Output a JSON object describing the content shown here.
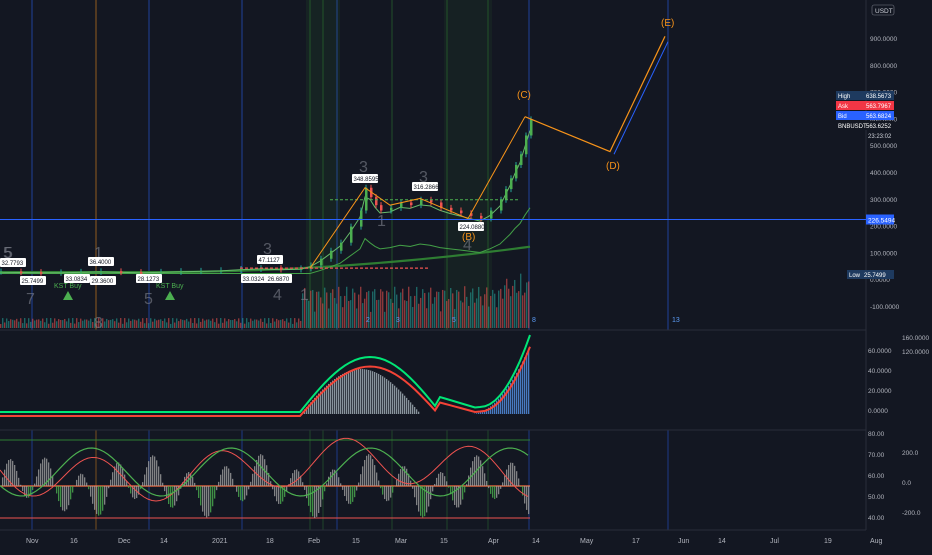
{
  "currency": "USDT",
  "symbol": "BNBUSDT",
  "colors": {
    "background": "#131722",
    "bull": "#26a69a",
    "bear": "#ef5350",
    "wave": "#f7931a",
    "wave_blue": "#2962ff",
    "price_line": "#2962ff"
  },
  "time_axis": [
    "Nov",
    "16",
    "Dec",
    "14",
    "2021",
    "18",
    "Feb",
    "15",
    "Mar",
    "15",
    "Apr",
    "14",
    "May",
    "17",
    "Jun",
    "14",
    "Jul",
    "19",
    "Aug"
  ],
  "price_axis": [
    "900.0000",
    "800.0000",
    "700.0000",
    "600.0000",
    "500.0000",
    "400.0000",
    "300.0000",
    "200.0000",
    "100.0000",
    "0.0000",
    "-100.0000"
  ],
  "price_tags": [
    {
      "label": "High",
      "value": "638.5673",
      "color": "#1e3a5f"
    },
    {
      "label": "Ask",
      "value": "563.7967",
      "color": "#f23645"
    },
    {
      "label": "Bid",
      "value": "563.6824",
      "color": "#2962ff"
    },
    {
      "label": "BNBUSDT",
      "value": "563.6252",
      "color": "#131722"
    }
  ],
  "countdown": "23:23:02",
  "line_tag": "226.5494",
  "low_tag": {
    "label": "Low",
    "value": "25.7499"
  },
  "wave_labels": [
    "(C)",
    "(D)",
    "(E)",
    "(B)"
  ],
  "count_labels": [
    "5",
    "7",
    "1",
    "8",
    "5",
    "3",
    "4",
    "3",
    "1",
    "3",
    "4",
    "5",
    "1"
  ],
  "bottom_counts": [
    "2",
    "3",
    "5",
    "8",
    "13"
  ],
  "annotations": [
    {
      "text": "KST Buy"
    },
    {
      "text": "KST Buy"
    }
  ],
  "price_boxes": [
    "32.7793",
    "25.7499",
    "36.4000",
    "33.0834",
    "47.1127",
    "29.3600",
    "28.1273",
    "33.0324",
    "26.6870",
    "348.8595",
    "316.2866",
    "224.0880"
  ],
  "indicator1_axis": [
    "60.0000",
    "40.0000",
    "20.0000",
    "0.0000"
  ],
  "indicator1_right_axis": [
    "160.0000",
    "120.0000"
  ],
  "indicator2_axis": [
    "80.00",
    "70.00",
    "60.00",
    "50.00",
    "40.00"
  ],
  "indicator2_right_axis": [
    "200.0",
    "0.0",
    "-200.0"
  ],
  "chart_data": {
    "type": "line",
    "title": "",
    "y_unit": "USDT",
    "ylim": [
      -100,
      900
    ],
    "series": [
      {
        "x": [
          0,
          20,
          40,
          60,
          80,
          100,
          120,
          140,
          160,
          180,
          200,
          220,
          240,
          260,
          280,
          300,
          310,
          320,
          330,
          340,
          350,
          360,
          365,
          370,
          375,
          380,
          390,
          400,
          410,
          420,
          430,
          440,
          450,
          460,
          470,
          480,
          490,
          500,
          505,
          510,
          515,
          520,
          525,
          530
        ],
        "values": [
          32,
          30,
          28,
          29,
          31,
          33,
          30,
          29,
          31,
          34,
          35,
          37,
          42,
          45,
          40,
          44,
          55,
          80,
          110,
          140,
          200,
          260,
          345,
          310,
          280,
          260,
          270,
          290,
          280,
          300,
          290,
          270,
          260,
          250,
          240,
          230,
          260,
          300,
          340,
          380,
          430,
          470,
          540,
          600
        ]
      }
    ],
    "projection": [
      {
        "x": 525,
        "y": 610,
        "label": "(C)"
      },
      {
        "x": 610,
        "y": 480,
        "label": "(D)"
      },
      {
        "x": 665,
        "y": 910,
        "label": "(E)"
      }
    ]
  }
}
